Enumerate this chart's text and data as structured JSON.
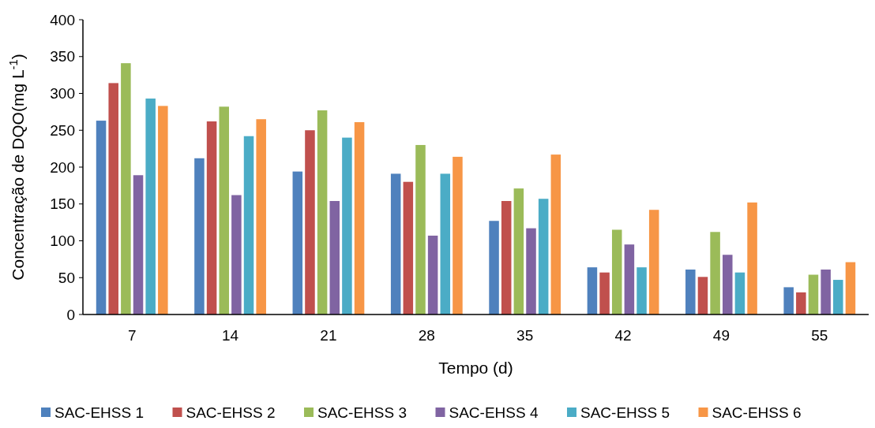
{
  "chart_data": {
    "type": "bar",
    "xlabel": "Tempo (d)",
    "ylabel": "Concentração de DQO(mg L$^{-1}$)",
    "categories": [
      "7",
      "14",
      "21",
      "28",
      "35",
      "42",
      "49",
      "55"
    ],
    "series": [
      {
        "name": "SAC-EHSS 1",
        "color": "#4f81bd",
        "values": [
          263,
          212,
          194,
          191,
          127,
          64,
          61,
          37
        ]
      },
      {
        "name": "SAC-EHSS 2",
        "color": "#c0504d",
        "values": [
          314,
          262,
          250,
          180,
          154,
          57,
          51,
          30
        ]
      },
      {
        "name": "SAC-EHSS 3",
        "color": "#9bbb59",
        "values": [
          341,
          282,
          277,
          230,
          171,
          115,
          112,
          54
        ]
      },
      {
        "name": "SAC-EHSS 4",
        "color": "#8064a2",
        "values": [
          189,
          162,
          154,
          107,
          117,
          95,
          81,
          61
        ]
      },
      {
        "name": "SAC-EHSS 5",
        "color": "#4bacc6",
        "values": [
          293,
          242,
          240,
          191,
          157,
          64,
          57,
          47
        ]
      },
      {
        "name": "SAC-EHSS 6",
        "color": "#f79646",
        "values": [
          283,
          265,
          261,
          214,
          217,
          142,
          152,
          71
        ]
      }
    ],
    "ylim": [
      0,
      400
    ],
    "yticks": [
      0,
      50,
      100,
      150,
      200,
      250,
      300,
      350,
      400
    ],
    "legend": "bottom",
    "grid": false
  }
}
